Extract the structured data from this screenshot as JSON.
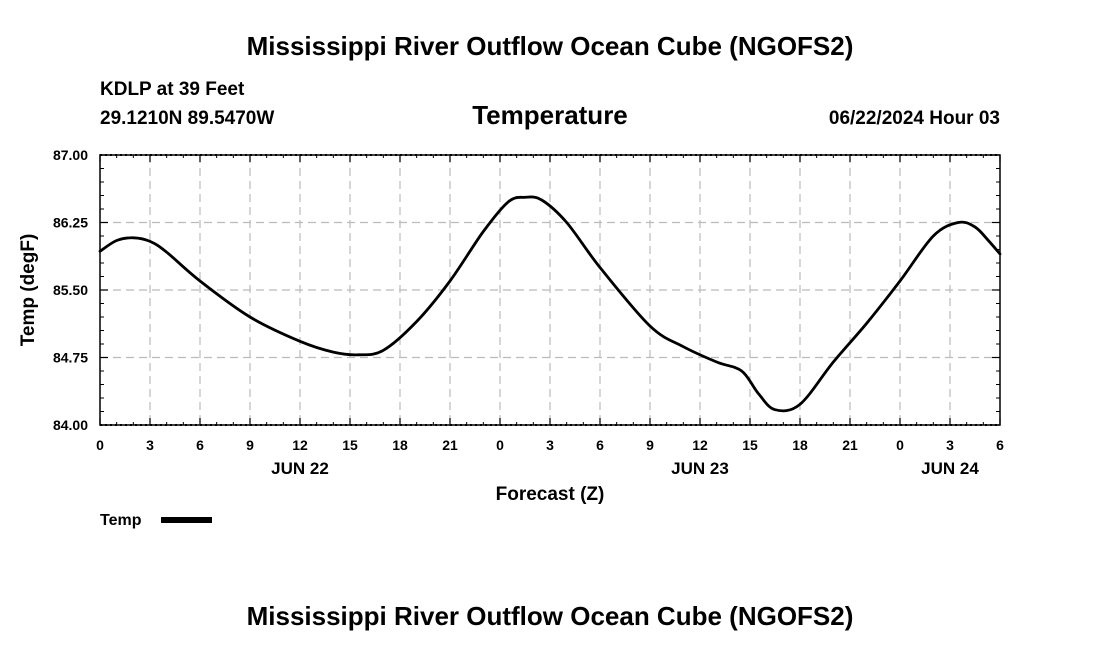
{
  "header": {
    "title": "Mississippi River Outflow Ocean Cube (NGOFS2)",
    "station": "KDLP at 39 Feet",
    "coords": "29.1210N  89.5470W",
    "panel_title": "Temperature",
    "datetime": "06/22/2024 Hour 03"
  },
  "footer": {
    "title": "Mississippi River Outflow Ocean Cube (NGOFS2)"
  },
  "legend": {
    "label": "Temp"
  },
  "colors": {
    "line": "#000000",
    "grid": "#bbbbbb"
  },
  "chart_data": {
    "type": "line",
    "title": "Temperature",
    "xlabel": "Forecast (Z)",
    "ylabel": "Temp (degF)",
    "xlim": [
      0,
      54
    ],
    "ylim": [
      84.0,
      87.0
    ],
    "x_ticks": [
      0,
      3,
      6,
      9,
      12,
      15,
      18,
      21,
      24,
      27,
      30,
      33,
      36,
      39,
      42,
      45,
      48,
      51,
      54
    ],
    "x_tick_labels": [
      "0",
      "3",
      "6",
      "9",
      "12",
      "15",
      "18",
      "21",
      "0",
      "3",
      "6",
      "9",
      "12",
      "15",
      "18",
      "21",
      "0",
      "3",
      "6"
    ],
    "y_ticks": [
      84.0,
      84.75,
      85.5,
      86.25,
      87.0
    ],
    "y_tick_labels": [
      "84.00",
      "84.75",
      "85.50",
      "86.25",
      "87.00"
    ],
    "date_labels": [
      {
        "x": 12,
        "label": "JUN 22"
      },
      {
        "x": 36,
        "label": "JUN 23"
      },
      {
        "x": 51,
        "label": "JUN 24"
      }
    ],
    "grid": true,
    "legend_position": "bottom-left",
    "series": [
      {
        "name": "Temp",
        "x": [
          0,
          1,
          2,
          3,
          4,
          6,
          9,
          12,
          14,
          15.5,
          17,
          19,
          21,
          23,
          24.5,
          25.5,
          26.5,
          28,
          30,
          33,
          35,
          37,
          38.5,
          39.5,
          40.5,
          42,
          44,
          46,
          48,
          50,
          51.5,
          52.5,
          53.3,
          54
        ],
        "values": [
          85.93,
          86.05,
          86.08,
          86.04,
          85.92,
          85.6,
          85.2,
          84.93,
          84.81,
          84.78,
          84.83,
          85.15,
          85.6,
          86.15,
          86.48,
          86.53,
          86.5,
          86.25,
          85.75,
          85.1,
          84.87,
          84.7,
          84.6,
          84.35,
          84.17,
          84.23,
          84.7,
          85.13,
          85.6,
          86.1,
          86.25,
          86.2,
          86.05,
          85.9
        ]
      }
    ]
  }
}
